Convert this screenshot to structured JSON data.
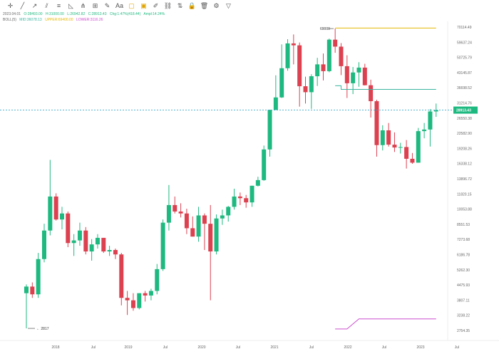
{
  "toolbar": {
    "icons": [
      "crosshair-icon",
      "trend-line-icon",
      "ray-icon",
      "parallel-channel-icon",
      "fib-icon",
      "triangle-icon",
      "pitchfork-icon",
      "measure-icon",
      "brush-icon",
      "text-icon",
      "note-icon",
      "highlight-icon",
      "pencil-icon",
      "link-icon",
      "long-position-icon",
      "lock-icon",
      "delete-icon",
      "settings-icon",
      "filter-icon"
    ]
  },
  "legend": {
    "ohlc": {
      "date": "2023.04.01",
      "open": "O:28493.00",
      "high": "H:31000.00",
      "low": "L:26942.82",
      "close": "C:28913.43",
      "chg": "Chg:1.47%(418.44)",
      "amp": "Ampl:14.24%"
    },
    "boll": {
      "name": "BOLL(5)",
      "mid": "MID:36078.13",
      "upper": "UPPER:69400.00",
      "lower": "LOWER:3116.26"
    }
  },
  "chart_data": {
    "type": "candlestick",
    "price_axis": {
      "scale": "log",
      "ticks": [
        "70114.49",
        "59637.24",
        "50725.79",
        "43145.87",
        "36698.52",
        "31214.76",
        "26550.38",
        "22582.90",
        "19208.26",
        "16338.12",
        "13896.72",
        "11820.15",
        "10053.88",
        "8551.53",
        "7273.68",
        "6186.78",
        "5262.30",
        "4475.93",
        "3807.11",
        "3238.22",
        "2754.35"
      ]
    },
    "time_axis": {
      "ticks": [
        "2018",
        "Jul",
        "2019",
        "Jul",
        "2020",
        "Jul",
        "2021",
        "Jul",
        "2022",
        "Jul",
        "2023",
        "Jul"
      ]
    },
    "current_price": {
      "label": "28913.43",
      "value": 28913.43,
      "color": "#1eb980"
    },
    "annotations": [
      {
        "label": "69000",
        "value": 69000
      },
      {
        "label": "2817",
        "value": 2817
      }
    ],
    "colors": {
      "up": "#1eb980",
      "down": "#dc4150"
    },
    "candles": [
      {
        "t": 0,
        "o": 4100,
        "h": 4500,
        "l": 2817,
        "c": 4400
      },
      {
        "t": 1,
        "o": 4400,
        "h": 4600,
        "l": 3900,
        "c": 4050
      },
      {
        "t": 2,
        "o": 4050,
        "h": 6300,
        "l": 3900,
        "c": 5900
      },
      {
        "t": 3,
        "o": 5900,
        "h": 8600,
        "l": 5700,
        "c": 8000
      },
      {
        "t": 4,
        "o": 8000,
        "h": 17000,
        "l": 7600,
        "c": 11500
      },
      {
        "t": 5,
        "o": 11500,
        "h": 11900,
        "l": 8900,
        "c": 9000
      },
      {
        "t": 6,
        "o": 9000,
        "h": 10300,
        "l": 8100,
        "c": 9600
      },
      {
        "t": 7,
        "o": 9600,
        "h": 9800,
        "l": 6700,
        "c": 7000
      },
      {
        "t": 8,
        "o": 7000,
        "h": 7700,
        "l": 6100,
        "c": 7200
      },
      {
        "t": 9,
        "o": 7200,
        "h": 8700,
        "l": 6800,
        "c": 8000
      },
      {
        "t": 10,
        "o": 8000,
        "h": 8300,
        "l": 6200,
        "c": 6400
      },
      {
        "t": 11,
        "o": 6400,
        "h": 7300,
        "l": 5800,
        "c": 6900
      },
      {
        "t": 12,
        "o": 6900,
        "h": 7700,
        "l": 6600,
        "c": 7400
      },
      {
        "t": 13,
        "o": 7400,
        "h": 7400,
        "l": 6300,
        "c": 6400
      },
      {
        "t": 14,
        "o": 6400,
        "h": 6800,
        "l": 6100,
        "c": 6500
      },
      {
        "t": 15,
        "o": 6500,
        "h": 6600,
        "l": 5900,
        "c": 6200
      },
      {
        "t": 16,
        "o": 6200,
        "h": 6300,
        "l": 3600,
        "c": 3900
      },
      {
        "t": 17,
        "o": 3900,
        "h": 4200,
        "l": 3250,
        "c": 3800
      },
      {
        "t": 18,
        "o": 3800,
        "h": 4100,
        "l": 3400,
        "c": 3500
      },
      {
        "t": 19,
        "o": 3500,
        "h": 4100,
        "l": 3450,
        "c": 4100
      },
      {
        "t": 20,
        "o": 4100,
        "h": 4200,
        "l": 3750,
        "c": 4000
      },
      {
        "t": 21,
        "o": 4000,
        "h": 4300,
        "l": 3800,
        "c": 4200
      },
      {
        "t": 22,
        "o": 4200,
        "h": 5600,
        "l": 4050,
        "c": 5300
      },
      {
        "t": 23,
        "o": 5300,
        "h": 9000,
        "l": 5200,
        "c": 8700
      },
      {
        "t": 24,
        "o": 8700,
        "h": 13000,
        "l": 8000,
        "c": 10500
      },
      {
        "t": 25,
        "o": 10500,
        "h": 11500,
        "l": 9600,
        "c": 9800
      },
      {
        "t": 26,
        "o": 9800,
        "h": 10700,
        "l": 9200,
        "c": 9600
      },
      {
        "t": 27,
        "o": 9600,
        "h": 10100,
        "l": 7700,
        "c": 8200
      },
      {
        "t": 28,
        "o": 8200,
        "h": 9300,
        "l": 7500,
        "c": 7500
      },
      {
        "t": 29,
        "o": 7500,
        "h": 10300,
        "l": 7100,
        "c": 9400
      },
      {
        "t": 30,
        "o": 9400,
        "h": 9600,
        "l": 6500,
        "c": 8600
      },
      {
        "t": 31,
        "o": 8600,
        "h": 10500,
        "l": 3800,
        "c": 6400
      },
      {
        "t": 32,
        "o": 6400,
        "h": 9500,
        "l": 6200,
        "c": 9100
      },
      {
        "t": 33,
        "o": 9100,
        "h": 10000,
        "l": 8500,
        "c": 9400
      },
      {
        "t": 34,
        "o": 9400,
        "h": 10400,
        "l": 8800,
        "c": 10300
      },
      {
        "t": 35,
        "o": 10300,
        "h": 12500,
        "l": 10000,
        "c": 11500
      },
      {
        "t": 36,
        "o": 11500,
        "h": 12000,
        "l": 10500,
        "c": 11300
      },
      {
        "t": 37,
        "o": 11300,
        "h": 11700,
        "l": 10200,
        "c": 10800
      },
      {
        "t": 38,
        "o": 10800,
        "h": 12900,
        "l": 10300,
        "c": 12900
      },
      {
        "t": 39,
        "o": 12900,
        "h": 14200,
        "l": 12800,
        "c": 13700
      },
      {
        "t": 40,
        "o": 13700,
        "h": 19800,
        "l": 13600,
        "c": 19000
      },
      {
        "t": 41,
        "o": 19000,
        "h": 29000,
        "l": 17600,
        "c": 29000
      },
      {
        "t": 42,
        "o": 29000,
        "h": 41900,
        "l": 28900,
        "c": 33100
      },
      {
        "t": 43,
        "o": 33100,
        "h": 58300,
        "l": 32900,
        "c": 45200
      },
      {
        "t": 44,
        "o": 45200,
        "h": 61600,
        "l": 44000,
        "c": 58900
      },
      {
        "t": 45,
        "o": 58900,
        "h": 64800,
        "l": 47100,
        "c": 57700
      },
      {
        "t": 46,
        "o": 57700,
        "h": 59500,
        "l": 30000,
        "c": 37300
      },
      {
        "t": 47,
        "o": 37300,
        "h": 41300,
        "l": 31000,
        "c": 35000
      },
      {
        "t": 48,
        "o": 35000,
        "h": 42400,
        "l": 29300,
        "c": 41500
      },
      {
        "t": 49,
        "o": 41500,
        "h": 50500,
        "l": 37400,
        "c": 47100
      },
      {
        "t": 50,
        "o": 47100,
        "h": 52900,
        "l": 39700,
        "c": 43800
      },
      {
        "t": 51,
        "o": 43800,
        "h": 62000,
        "l": 43300,
        "c": 61300
      },
      {
        "t": 52,
        "o": 61300,
        "h": 69000,
        "l": 53300,
        "c": 56900
      },
      {
        "t": 53,
        "o": 56900,
        "h": 59100,
        "l": 42000,
        "c": 46200
      },
      {
        "t": 54,
        "o": 46200,
        "h": 51900,
        "l": 32900,
        "c": 38500
      },
      {
        "t": 55,
        "o": 38500,
        "h": 45800,
        "l": 34300,
        "c": 43200
      },
      {
        "t": 56,
        "o": 43200,
        "h": 48200,
        "l": 37100,
        "c": 45500
      },
      {
        "t": 57,
        "o": 45500,
        "h": 47400,
        "l": 37600,
        "c": 37700
      },
      {
        "t": 58,
        "o": 37700,
        "h": 40000,
        "l": 26700,
        "c": 31800
      },
      {
        "t": 59,
        "o": 31800,
        "h": 32300,
        "l": 17600,
        "c": 19900
      },
      {
        "t": 60,
        "o": 19900,
        "h": 24600,
        "l": 18800,
        "c": 23300
      },
      {
        "t": 61,
        "o": 23300,
        "h": 25200,
        "l": 19600,
        "c": 20000
      },
      {
        "t": 62,
        "o": 20000,
        "h": 22800,
        "l": 18500,
        "c": 19400
      },
      {
        "t": 63,
        "o": 19400,
        "h": 20400,
        "l": 18200,
        "c": 19500
      },
      {
        "t": 64,
        "o": 19500,
        "h": 21000,
        "l": 15500,
        "c": 17200
      },
      {
        "t": 65,
        "o": 17200,
        "h": 18300,
        "l": 16300,
        "c": 16500
      },
      {
        "t": 66,
        "o": 16500,
        "h": 23900,
        "l": 16500,
        "c": 23100
      },
      {
        "t": 67,
        "o": 23100,
        "h": 25200,
        "l": 21400,
        "c": 23500
      },
      {
        "t": 68,
        "o": 23500,
        "h": 29200,
        "l": 19600,
        "c": 28500
      },
      {
        "t": 69,
        "o": 28500,
        "h": 31000,
        "l": 26900,
        "c": 28900
      }
    ],
    "boll_lines": {
      "upper": [
        {
          "t": 52,
          "v": 69400
        },
        {
          "t": 69,
          "v": 69400
        }
      ],
      "mid": [
        {
          "t": 52,
          "v": 37500
        },
        {
          "t": 53,
          "v": 37500
        },
        {
          "t": 53,
          "v": 36078
        },
        {
          "t": 69,
          "v": 36078
        }
      ],
      "lower": [
        {
          "t": 52,
          "v": 2800
        },
        {
          "t": 54,
          "v": 2800
        },
        {
          "t": 56,
          "v": 3116
        },
        {
          "t": 69,
          "v": 3116
        }
      ]
    }
  }
}
